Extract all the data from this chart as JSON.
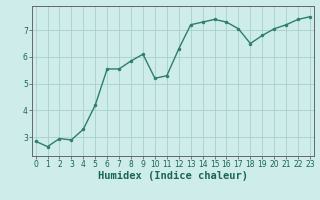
{
  "x": [
    0,
    1,
    2,
    3,
    4,
    5,
    6,
    7,
    8,
    9,
    10,
    11,
    12,
    13,
    14,
    15,
    16,
    17,
    18,
    19,
    20,
    21,
    22,
    23
  ],
  "y": [
    2.85,
    2.65,
    2.95,
    2.9,
    3.3,
    4.2,
    5.55,
    5.55,
    5.85,
    6.1,
    5.2,
    5.3,
    6.3,
    7.2,
    7.3,
    7.4,
    7.3,
    7.05,
    6.5,
    6.8,
    7.05,
    7.2,
    7.4,
    7.5
  ],
  "line_color": "#2e7d6e",
  "marker": "o",
  "marker_size": 2.0,
  "linewidth": 1.0,
  "bg_color": "#cdecea",
  "grid_color": "#a8d0cc",
  "axis_color": "#666666",
  "xlabel": "Humidex (Indice chaleur)",
  "xlabel_fontsize": 7.5,
  "xlabel_color": "#1a6655",
  "ylabel": "",
  "yticks": [
    3,
    4,
    5,
    6,
    7
  ],
  "xticks": [
    0,
    1,
    2,
    3,
    4,
    5,
    6,
    7,
    8,
    9,
    10,
    11,
    12,
    13,
    14,
    15,
    16,
    17,
    18,
    19,
    20,
    21,
    22,
    23
  ],
  "xlim": [
    -0.3,
    23.3
  ],
  "ylim": [
    2.3,
    7.9
  ],
  "tick_fontsize": 5.5,
  "tick_color": "#1a6655"
}
